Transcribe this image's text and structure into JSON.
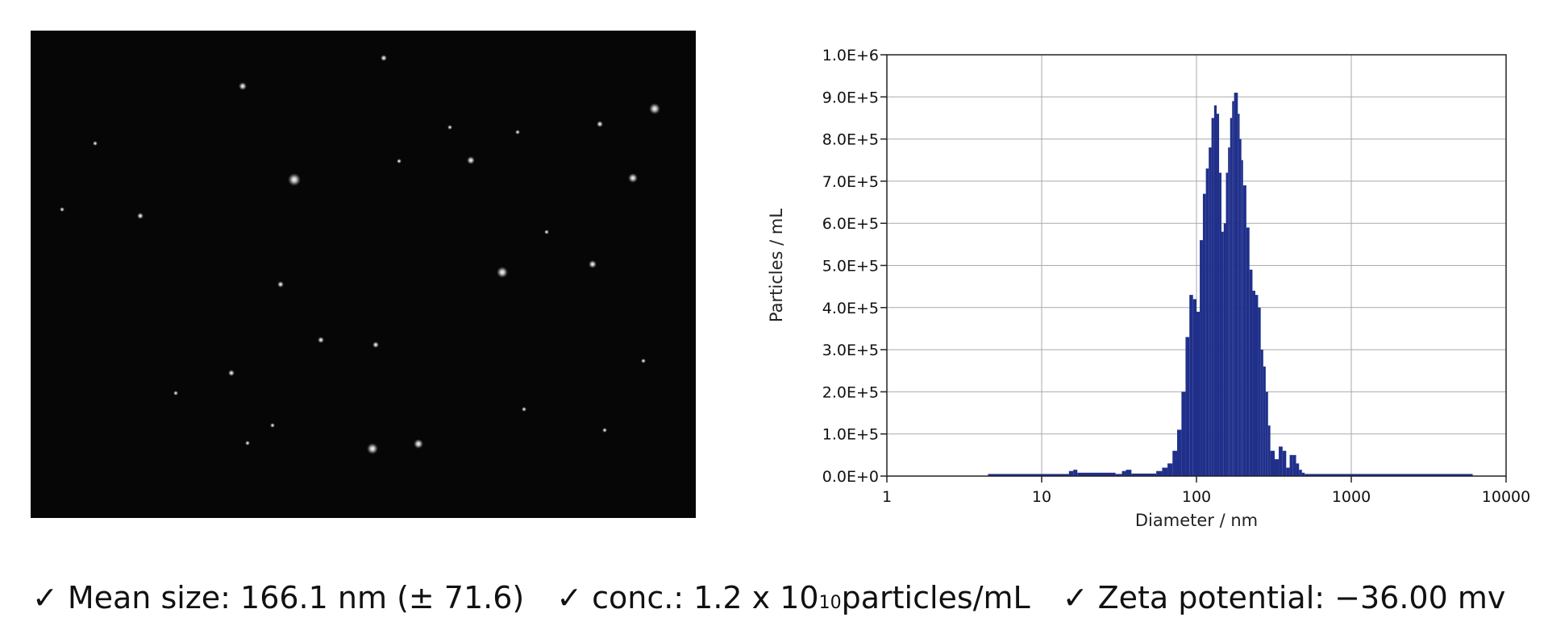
{
  "summary": {
    "check_mark": "✓",
    "mean_size": "Mean size: 166.1 nm (± 71.6)",
    "conc_prefix": "conc.: 1.2 x 10",
    "conc_exponent": "10",
    "conc_suffix": " particles/mL",
    "zeta": "Zeta potential: −36.00 mv"
  },
  "chart_data": {
    "type": "bar",
    "x_scale": "log",
    "xlabel": "Diameter / nm",
    "ylabel": "Particles / mL",
    "xlim": [
      1,
      10000
    ],
    "ylim": [
      0,
      1000000
    ],
    "x_ticks": [
      "1",
      "10",
      "100",
      "1000",
      "10000"
    ],
    "y_ticks": [
      "0.0E+0",
      "1.0E+5",
      "2.0E+5",
      "3.0E+5",
      "4.0E+5",
      "5.0E+5",
      "6.0E+5",
      "7.0E+5",
      "8.0E+5",
      "9.0E+5",
      "1.0E+6"
    ],
    "grid": true,
    "bar_color": "#1f2f8a",
    "x": [
      4.5,
      14,
      15,
      16,
      17,
      30,
      33,
      35,
      38,
      55,
      60,
      65,
      70,
      75,
      80,
      85,
      90,
      95,
      100,
      105,
      110,
      115,
      120,
      125,
      130,
      135,
      140,
      145,
      150,
      155,
      160,
      165,
      170,
      175,
      180,
      185,
      190,
      195,
      200,
      210,
      220,
      230,
      240,
      250,
      260,
      270,
      280,
      290,
      300,
      320,
      340,
      360,
      380,
      400,
      420,
      440,
      460,
      480,
      500,
      540,
      580,
      6000
    ],
    "values": [
      5000,
      5000,
      12000,
      15000,
      8000,
      5000,
      12000,
      15000,
      6000,
      12000,
      20000,
      30000,
      60000,
      110000,
      200000,
      330000,
      430000,
      420000,
      390000,
      560000,
      670000,
      730000,
      780000,
      850000,
      880000,
      860000,
      720000,
      580000,
      600000,
      720000,
      780000,
      850000,
      890000,
      910000,
      910000,
      860000,
      800000,
      750000,
      690000,
      590000,
      490000,
      440000,
      430000,
      400000,
      300000,
      260000,
      200000,
      120000,
      60000,
      40000,
      70000,
      60000,
      20000,
      50000,
      50000,
      30000,
      15000,
      8000,
      5000,
      5000,
      5000,
      5000
    ]
  },
  "micrograph": {
    "background_color": "#060606",
    "particle_color": "#ffffff"
  }
}
